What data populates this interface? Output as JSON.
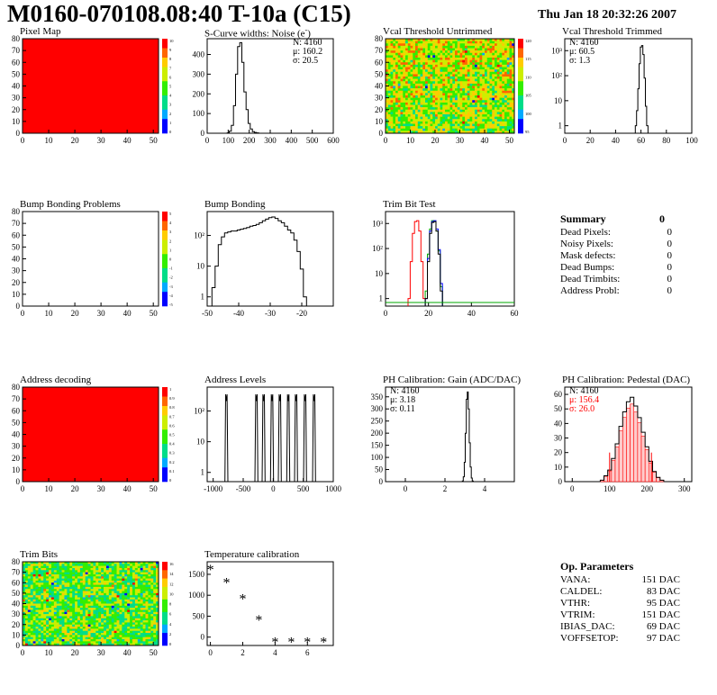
{
  "header": {
    "title": "M0160-070108.08:40 T-10a (C15)",
    "timestamp": "Thu Jan 18 20:32:26 2007"
  },
  "colors": {
    "red": "#ff0000",
    "hist_line": "#000000",
    "green": "#00aa00",
    "blue": "#0000ff"
  },
  "chart_data": [
    {
      "id": "pixel_map",
      "type": "heatmap",
      "title": "Pixel Map",
      "x_ticks": [
        "0",
        "10",
        "20",
        "30",
        "40",
        "50"
      ],
      "y_ticks": [
        "0",
        "10",
        "20",
        "30",
        "40",
        "50",
        "60",
        "70",
        "80"
      ],
      "xlim": [
        0,
        52
      ],
      "ylim": [
        0,
        80
      ],
      "z_ticks": [
        "10",
        "9",
        "8",
        "7",
        "6",
        "5",
        "4",
        "3",
        "2",
        "1",
        "0"
      ],
      "fill": "uniform red"
    },
    {
      "id": "scurve",
      "type": "bar",
      "title": "S-Curve widths: Noise (e",
      "title_sup": "-",
      "title_end": ")",
      "x_ticks": [
        "0",
        "100",
        "200",
        "300",
        "400",
        "500",
        "600"
      ],
      "y_ticks": [
        "0",
        "100",
        "200",
        "300",
        "400"
      ],
      "xlim": [
        0,
        600
      ],
      "ylim": [
        0,
        480
      ],
      "stats": [
        "N: 4160",
        "μ: 160.2",
        "σ: 20.5"
      ],
      "bins": [
        [
          100,
          2
        ],
        [
          110,
          10
        ],
        [
          120,
          40
        ],
        [
          130,
          140
        ],
        [
          140,
          300
        ],
        [
          150,
          440
        ],
        [
          160,
          460
        ],
        [
          170,
          360
        ],
        [
          180,
          210
        ],
        [
          190,
          120
        ],
        [
          200,
          50
        ],
        [
          210,
          22
        ],
        [
          220,
          8
        ],
        [
          230,
          4
        ],
        [
          240,
          2
        ]
      ]
    },
    {
      "id": "vcal_untrimmed",
      "type": "heatmap",
      "title": "Vcal Threshold Untrimmed",
      "x_ticks": [
        "0",
        "10",
        "20",
        "30",
        "40",
        "50"
      ],
      "y_ticks": [
        "0",
        "10",
        "20",
        "30",
        "40",
        "50",
        "60",
        "70",
        "80"
      ],
      "xlim": [
        0,
        52
      ],
      "ylim": [
        0,
        80
      ],
      "z_ticks": [
        "120",
        "115",
        "110",
        "105",
        "100",
        "95"
      ]
    },
    {
      "id": "vcal_trimmed",
      "type": "bar",
      "title": "Vcal Threshold Trimmed",
      "log": true,
      "x_ticks": [
        "0",
        "20",
        "40",
        "60",
        "80",
        "100"
      ],
      "y_ticks": [
        "1",
        "10",
        "10²",
        "10³"
      ],
      "xlim": [
        0,
        100
      ],
      "ylim_log": [
        0.5,
        3000
      ],
      "stats": [
        "N: 4160",
        "μ: 60.5",
        "σ:   1.3"
      ],
      "bins": [
        [
          56,
          1
        ],
        [
          57,
          4
        ],
        [
          58,
          30
        ],
        [
          59,
          300
        ],
        [
          60,
          1400
        ],
        [
          61,
          1600
        ],
        [
          62,
          700
        ],
        [
          63,
          80
        ],
        [
          64,
          6
        ],
        [
          65,
          1
        ]
      ]
    },
    {
      "id": "bump_problems",
      "type": "heatmap",
      "title": "Bump Bonding Problems",
      "x_ticks": [
        "0",
        "10",
        "20",
        "30",
        "40",
        "50"
      ],
      "y_ticks": [
        "0",
        "10",
        "20",
        "30",
        "40",
        "50",
        "60",
        "70",
        "80"
      ],
      "xlim": [
        0,
        52
      ],
      "ylim": [
        0,
        80
      ],
      "z_ticks": [
        "5",
        "4",
        "3",
        "2",
        "1",
        "0",
        "-1",
        "-2",
        "-3",
        "-4",
        "-5"
      ],
      "fill": "empty"
    },
    {
      "id": "bump_bonding",
      "type": "bar",
      "title": "Bump Bonding",
      "log": true,
      "x_ticks": [
        "-50",
        "-40",
        "-30",
        "-20"
      ],
      "y_ticks": [
        "1",
        "10",
        "10²"
      ],
      "xlim": [
        -50,
        -10
      ],
      "ylim_log": [
        0.5,
        600
      ],
      "bins": [
        [
          -48,
          2
        ],
        [
          -47,
          10
        ],
        [
          -46,
          50
        ],
        [
          -45,
          90
        ],
        [
          -44,
          120
        ],
        [
          -43,
          130
        ],
        [
          -42,
          140
        ],
        [
          -41,
          140
        ],
        [
          -40,
          150
        ],
        [
          -39,
          160
        ],
        [
          -38,
          170
        ],
        [
          -37,
          180
        ],
        [
          -36,
          200
        ],
        [
          -35,
          210
        ],
        [
          -34,
          230
        ],
        [
          -33,
          260
        ],
        [
          -32,
          300
        ],
        [
          -31,
          340
        ],
        [
          -30,
          380
        ],
        [
          -29,
          400
        ],
        [
          -28,
          360
        ],
        [
          -27,
          300
        ],
        [
          -26,
          260
        ],
        [
          -25,
          200
        ],
        [
          -24,
          150
        ],
        [
          -23,
          120
        ],
        [
          -22,
          70
        ],
        [
          -21,
          30
        ],
        [
          -20,
          8
        ],
        [
          -19,
          1
        ]
      ]
    },
    {
      "id": "trim_bit_test",
      "type": "line",
      "title": "Trim Bit Test",
      "log": true,
      "x_ticks": [
        "0",
        "20",
        "40",
        "60"
      ],
      "y_ticks": [
        "1",
        "10",
        "10²",
        "10³"
      ],
      "xlim": [
        0,
        60
      ],
      "ylim_log": [
        0.5,
        3000
      ],
      "series": [
        {
          "color": "#ff0000",
          "bins": [
            [
              11,
              1
            ],
            [
              12,
              30
            ],
            [
              13,
              400
            ],
            [
              14,
              1200
            ],
            [
              15,
              1300
            ],
            [
              16,
              500
            ],
            [
              17,
              30
            ],
            [
              18,
              1
            ]
          ]
        },
        {
          "color": "#00aa00",
          "bins": [
            [
              19,
              2
            ],
            [
              20,
              60
            ],
            [
              21,
              600
            ],
            [
              22,
              1300
            ],
            [
              23,
              1200
            ],
            [
              24,
              500
            ],
            [
              25,
              80
            ],
            [
              26,
              3
            ]
          ]
        },
        {
          "color": "#0000ff",
          "bins": [
            [
              19,
              1
            ],
            [
              20,
              40
            ],
            [
              21,
              500
            ],
            [
              22,
              1200
            ],
            [
              23,
              1300
            ],
            [
              24,
              600
            ],
            [
              25,
              90
            ],
            [
              26,
              4
            ]
          ]
        },
        {
          "color": "#000000",
          "bins": [
            [
              19,
              1
            ],
            [
              20,
              30
            ],
            [
              21,
              400
            ],
            [
              22,
              1100
            ],
            [
              23,
              1200
            ],
            [
              24,
              500
            ],
            [
              25,
              60
            ],
            [
              26,
              2
            ]
          ]
        }
      ]
    },
    {
      "id": "address_decoding",
      "type": "heatmap",
      "title": "Address decoding",
      "x_ticks": [
        "0",
        "10",
        "20",
        "30",
        "40",
        "50"
      ],
      "y_ticks": [
        "0",
        "10",
        "20",
        "30",
        "40",
        "50",
        "60",
        "70",
        "80"
      ],
      "xlim": [
        0,
        52
      ],
      "ylim": [
        0,
        80
      ],
      "z_ticks": [
        "1",
        "0.9",
        "0.8",
        "0.7",
        "0.6",
        "0.5",
        "0.4",
        "0.3",
        "0.2",
        "0.1",
        "0"
      ],
      "fill": "uniform red"
    },
    {
      "id": "address_levels",
      "type": "bar",
      "title": "Address Levels",
      "log": true,
      "x_ticks": [
        "-1000",
        "-500",
        "0",
        "500",
        "1000"
      ],
      "y_ticks": [
        "1",
        "10",
        "10²"
      ],
      "xlim": [
        -1100,
        1000
      ],
      "ylim_log": [
        0.5,
        600
      ],
      "peaks": [
        -780,
        -280,
        -160,
        -20,
        110,
        250,
        380,
        530,
        680
      ],
      "peak_height": 350
    },
    {
      "id": "ph_gain",
      "type": "bar",
      "title": "PH Calibration: Gain (ADC/DAC)",
      "x_ticks": [
        "0",
        "2",
        "4"
      ],
      "y_ticks": [
        "0",
        "50",
        "100",
        "150",
        "200",
        "250",
        "300",
        "350"
      ],
      "xlim": [
        -1,
        5.5
      ],
      "ylim": [
        0,
        390
      ],
      "stats": [
        "N: 4160",
        "μ: 3.18",
        "σ: 0.11"
      ],
      "bins": [
        [
          2.9,
          3
        ],
        [
          2.95,
          20
        ],
        [
          3.0,
          80
        ],
        [
          3.05,
          200
        ],
        [
          3.1,
          340
        ],
        [
          3.15,
          370
        ],
        [
          3.2,
          300
        ],
        [
          3.25,
          160
        ],
        [
          3.3,
          60
        ],
        [
          3.35,
          15
        ],
        [
          3.4,
          3
        ]
      ]
    },
    {
      "id": "ph_pedestal",
      "type": "bar",
      "title": "PH Calibration: Pedestal (DAC)",
      "x_ticks": [
        "0",
        "100",
        "200",
        "300"
      ],
      "y_ticks": [
        "0",
        "10",
        "20",
        "30",
        "40",
        "50",
        "60"
      ],
      "xlim": [
        -20,
        320
      ],
      "ylim": [
        0,
        65
      ],
      "stats": [
        "N: 4160",
        "μ: 156.4",
        "σ: 26.0"
      ],
      "stats_colors": [
        "#000000",
        "#ff0000",
        "#ff0000"
      ],
      "bins": [
        [
          80,
          1
        ],
        [
          90,
          4
        ],
        [
          100,
          8
        ],
        [
          110,
          16
        ],
        [
          120,
          26
        ],
        [
          130,
          38
        ],
        [
          140,
          48
        ],
        [
          150,
          55
        ],
        [
          160,
          58
        ],
        [
          170,
          52
        ],
        [
          180,
          44
        ],
        [
          190,
          34
        ],
        [
          200,
          24
        ],
        [
          210,
          14
        ],
        [
          220,
          7
        ],
        [
          230,
          3
        ],
        [
          240,
          1
        ]
      ]
    },
    {
      "id": "trim_bits",
      "type": "heatmap",
      "title": "Trim Bits",
      "x_ticks": [
        "0",
        "10",
        "20",
        "30",
        "40",
        "50"
      ],
      "y_ticks": [
        "0",
        "10",
        "20",
        "30",
        "40",
        "50",
        "60",
        "70",
        "80"
      ],
      "xlim": [
        0,
        52
      ],
      "ylim": [
        0,
        80
      ],
      "z_ticks": [
        "16",
        "14",
        "12",
        "10",
        "8",
        "6",
        "4",
        "2",
        "0"
      ]
    },
    {
      "id": "temperature",
      "type": "scatter",
      "title": "Temperature calibration",
      "x_ticks": [
        "0",
        "2",
        "4",
        "6"
      ],
      "y_ticks": [
        "0",
        "500",
        "1000",
        "1500"
      ],
      "xlim": [
        -0.2,
        7.6
      ],
      "ylim": [
        -200,
        1800
      ],
      "points": [
        [
          0,
          1650
        ],
        [
          1,
          1340
        ],
        [
          2,
          950
        ],
        [
          3,
          450
        ],
        [
          4,
          -80
        ],
        [
          5,
          -80
        ],
        [
          6,
          -80
        ],
        [
          7,
          -80
        ]
      ]
    }
  ],
  "summary": {
    "title": "Summary",
    "value": "0",
    "rows": [
      {
        "label": "Dead Pixels:",
        "value": "0"
      },
      {
        "label": "Noisy Pixels:",
        "value": "0"
      },
      {
        "label": "Mask defects:",
        "value": "0"
      },
      {
        "label": "Dead Bumps:",
        "value": "0"
      },
      {
        "label": "Dead Trimbits:",
        "value": "0"
      },
      {
        "label": "Address Probl:",
        "value": "0"
      }
    ]
  },
  "op_params": {
    "title": "Op. Parameters",
    "rows": [
      {
        "label": "VANA:",
        "value": "151 DAC"
      },
      {
        "label": "CALDEL:",
        "value": "83 DAC"
      },
      {
        "label": "VTHR:",
        "value": "95 DAC"
      },
      {
        "label": "VTRIM:",
        "value": "151 DAC"
      },
      {
        "label": "IBIAS_DAC:",
        "value": "69 DAC"
      },
      {
        "label": "VOFFSETOP:",
        "value": "97 DAC"
      }
    ]
  }
}
